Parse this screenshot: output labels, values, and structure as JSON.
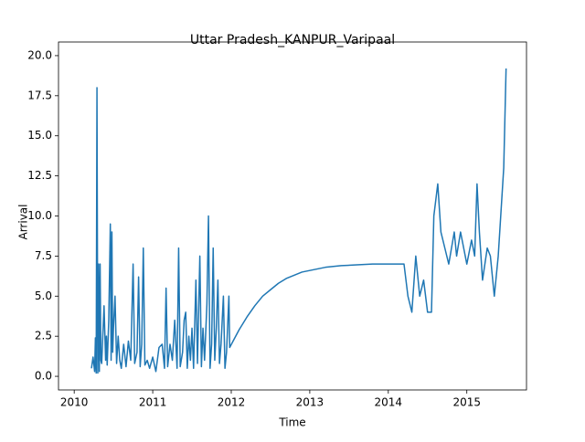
{
  "chart_data": {
    "type": "line",
    "title": "Uttar Pradesh_KANPUR_Varipaal",
    "x_label": "Time",
    "y_label": "Arrival",
    "x": [
      2010.22,
      2010.24,
      2010.26,
      2010.27,
      2010.28,
      2010.29,
      2010.3,
      2010.31,
      2010.32,
      2010.33,
      2010.34,
      2010.35,
      2010.36,
      2010.38,
      2010.4,
      2010.41,
      2010.42,
      2010.44,
      2010.46,
      2010.47,
      2010.48,
      2010.49,
      2010.5,
      2010.52,
      2010.54,
      2010.56,
      2010.58,
      2010.6,
      2010.63,
      2010.66,
      2010.69,
      2010.72,
      2010.75,
      2010.77,
      2010.8,
      2010.82,
      2010.84,
      2010.86,
      2010.88,
      2010.9,
      2010.93,
      2010.96,
      2011.0,
      2011.04,
      2011.08,
      2011.12,
      2011.15,
      2011.17,
      2011.19,
      2011.22,
      2011.25,
      2011.28,
      2011.31,
      2011.33,
      2011.35,
      2011.38,
      2011.4,
      2011.42,
      2011.44,
      2011.46,
      2011.48,
      2011.5,
      2011.52,
      2011.55,
      2011.57,
      2011.6,
      2011.62,
      2011.64,
      2011.66,
      2011.69,
      2011.71,
      2011.73,
      2011.75,
      2011.77,
      2011.79,
      2011.81,
      2011.83,
      2011.85,
      2011.87,
      2011.9,
      2011.92,
      2011.94,
      2011.97,
      2011.98,
      2012.1,
      2012.2,
      2012.3,
      2012.4,
      2012.5,
      2012.6,
      2012.7,
      2012.8,
      2012.9,
      2013.0,
      2013.2,
      2013.4,
      2013.6,
      2013.8,
      2014.0,
      2014.2,
      2014.25,
      2014.3,
      2014.35,
      2014.4,
      2014.45,
      2014.5,
      2014.55,
      2014.58,
      2014.63,
      2014.67,
      2014.72,
      2014.77,
      2014.84,
      2014.87,
      2014.92,
      2014.96,
      2015.0,
      2015.06,
      2015.1,
      2015.13,
      2015.16,
      2015.2,
      2015.26,
      2015.3,
      2015.35,
      2015.4,
      2015.47,
      2015.5
    ],
    "series": [
      {
        "name": "Arrival",
        "color": "#1f77b4",
        "values": [
          0.5,
          1.2,
          0.3,
          2.4,
          0.2,
          18.0,
          0.2,
          7.0,
          0.3,
          7.0,
          1.0,
          0.8,
          2.0,
          4.4,
          1.0,
          2.5,
          0.7,
          3.5,
          9.5,
          1.0,
          9.0,
          1.5,
          3.0,
          5.0,
          0.8,
          2.5,
          1.0,
          0.5,
          2.0,
          0.6,
          2.2,
          1.0,
          7.0,
          0.8,
          1.5,
          6.2,
          0.6,
          2.0,
          8.0,
          0.7,
          1.0,
          0.5,
          1.2,
          0.3,
          1.8,
          2.0,
          0.5,
          5.5,
          0.6,
          2.0,
          1.0,
          3.5,
          0.5,
          8.0,
          0.6,
          1.5,
          3.5,
          4.0,
          0.5,
          2.5,
          1.0,
          3.0,
          0.5,
          6.0,
          0.8,
          7.5,
          0.6,
          3.0,
          1.0,
          4.5,
          10.0,
          0.5,
          2.0,
          8.0,
          1.0,
          3.0,
          6.0,
          0.8,
          2.0,
          5.0,
          0.5,
          1.5,
          5.0,
          1.8,
          2.9,
          3.7,
          4.4,
          5.0,
          5.4,
          5.8,
          6.1,
          6.3,
          6.5,
          6.6,
          6.8,
          6.9,
          6.95,
          7.0,
          7.0,
          7.0,
          5.0,
          4.0,
          7.5,
          5.0,
          6.0,
          4.0,
          4.0,
          10.0,
          12.0,
          9.0,
          8.0,
          7.0,
          9.0,
          7.5,
          9.0,
          8.0,
          7.0,
          8.5,
          7.5,
          12.0,
          9.0,
          6.0,
          8.0,
          7.5,
          5.0,
          7.5,
          13.0,
          19.2
        ]
      }
    ],
    "xlim": [
      2009.8,
      2015.76
    ],
    "xticks": [
      2010,
      2011,
      2012,
      2013,
      2014,
      2015
    ],
    "ylim": [
      -0.85,
      20.85
    ],
    "yticks": [
      {
        "value": 0,
        "label": "0.0"
      },
      {
        "value": 2.5,
        "label": "2.5"
      },
      {
        "value": 5,
        "label": "5.0"
      },
      {
        "value": 7.5,
        "label": "7.5"
      },
      {
        "value": 10,
        "label": "10.0"
      },
      {
        "value": 12.5,
        "label": "12.5"
      },
      {
        "value": 15,
        "label": "15.0"
      },
      {
        "value": 17.5,
        "label": "17.5"
      },
      {
        "value": 20,
        "label": "20.0"
      }
    ],
    "grid": false
  }
}
